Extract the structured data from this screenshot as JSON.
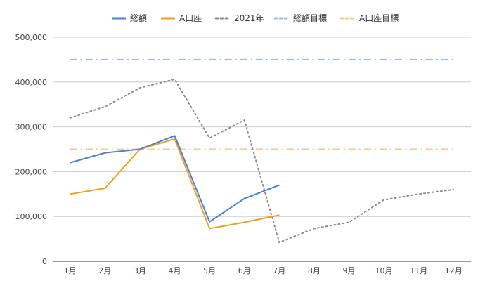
{
  "chart_data": {
    "type": "line",
    "categories": [
      "1月",
      "2月",
      "3月",
      "4月",
      "5月",
      "6月",
      "7月",
      "8月",
      "9月",
      "10月",
      "11月",
      "12月"
    ],
    "y_ticks": [
      "0",
      "100,000",
      "200,000",
      "300,000",
      "400,000",
      "500,000"
    ],
    "ylim": [
      0,
      500000
    ],
    "grid": true,
    "legend_position": "top",
    "series": [
      {
        "name": "総額",
        "color": "#4a7fd6",
        "style": "solid",
        "values": [
          220000,
          242000,
          250000,
          280000,
          88000,
          140000,
          170000,
          null,
          null,
          null,
          null,
          null
        ]
      },
      {
        "name": "A口座",
        "color": "#f29f1e",
        "style": "solid",
        "values": [
          150000,
          163000,
          250000,
          273000,
          73000,
          87000,
          103000,
          null,
          null,
          null,
          null,
          null
        ]
      },
      {
        "name": "2021年",
        "color": "#8a8a8a",
        "style": "dotted",
        "values": [
          320000,
          345000,
          387000,
          406000,
          275000,
          315000,
          42000,
          73000,
          87000,
          137000,
          150000,
          160000
        ]
      },
      {
        "name": "総額目標",
        "color": "#9ab9ec",
        "style": "dashdot",
        "values": [
          450000,
          450000,
          450000,
          450000,
          450000,
          450000,
          450000,
          450000,
          450000,
          450000,
          450000,
          450000
        ]
      },
      {
        "name": "A口座目標",
        "color": "#f6c98e",
        "style": "dashdot",
        "values": [
          250000,
          250000,
          250000,
          250000,
          250000,
          250000,
          250000,
          250000,
          250000,
          250000,
          250000,
          250000
        ]
      }
    ]
  }
}
